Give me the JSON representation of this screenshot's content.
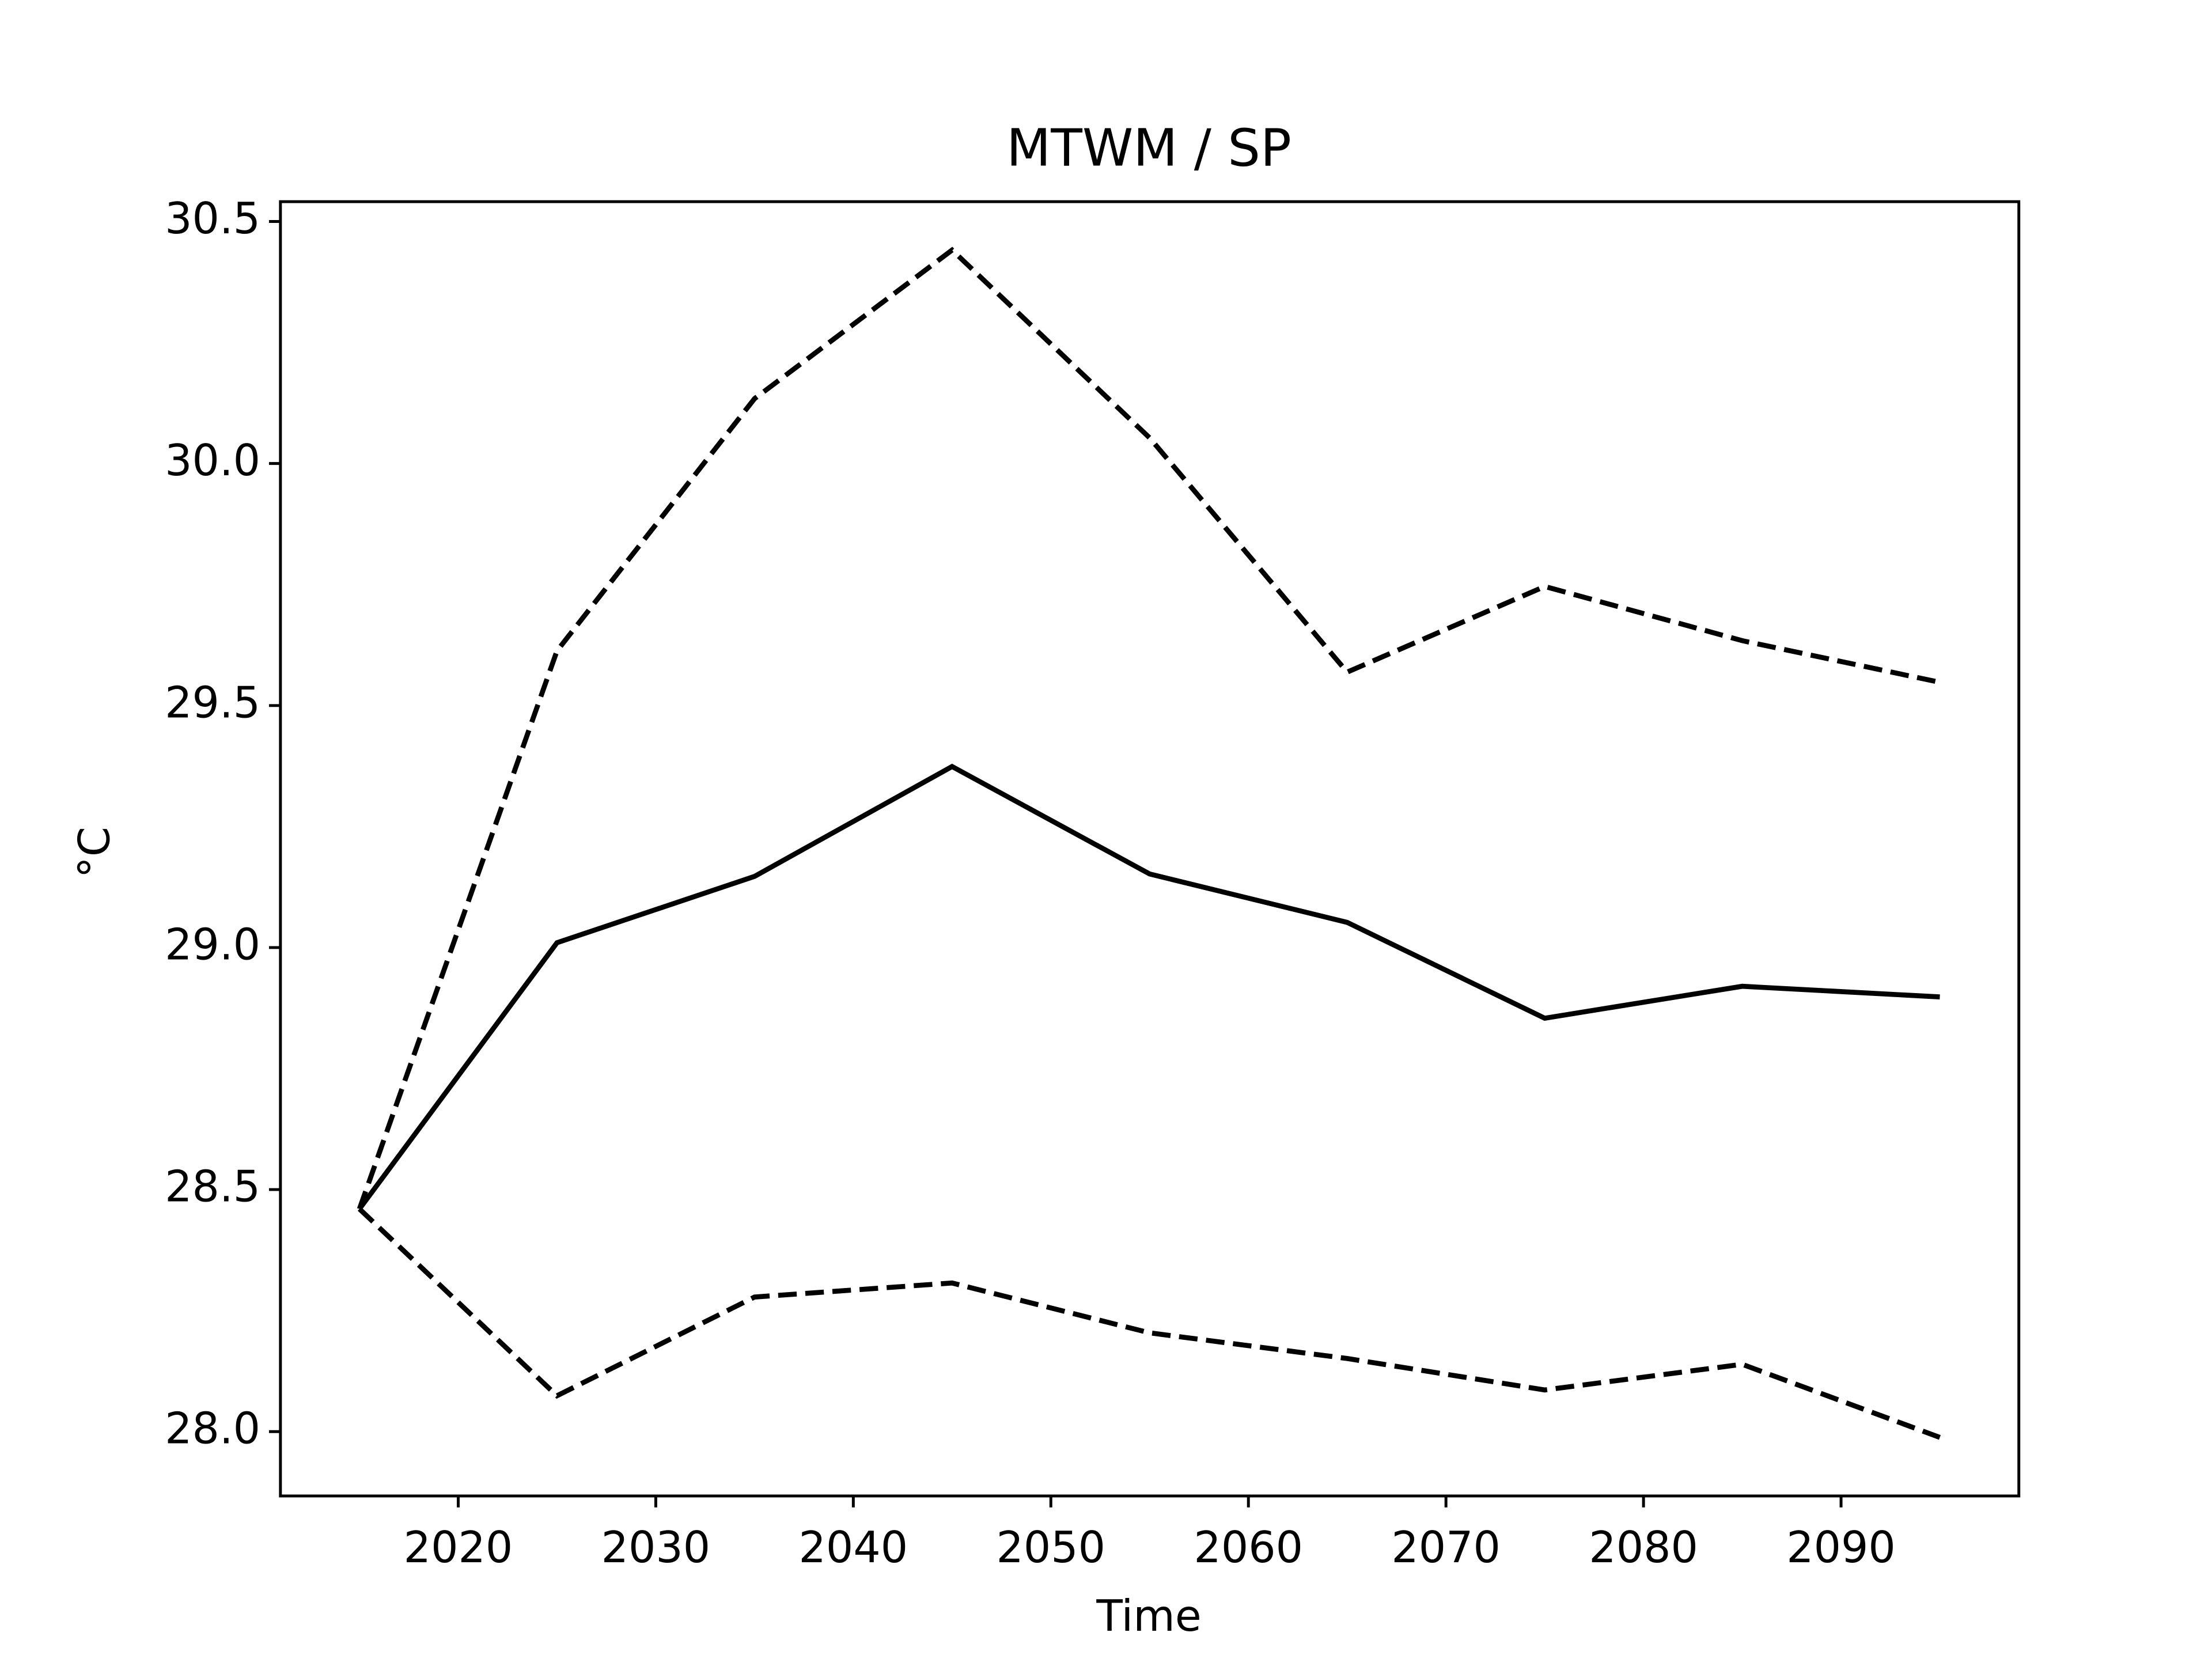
{
  "chart_data": {
    "type": "line",
    "title": "MTWM / SP",
    "xlabel": "Time",
    "ylabel": "°C",
    "x": [
      2015,
      2025,
      2035,
      2045,
      2055,
      2065,
      2075,
      2085,
      2095
    ],
    "series": [
      {
        "color": "#000000",
        "linestyle": "solid",
        "values": [
          28.46,
          29.01,
          29.147,
          29.374,
          29.152,
          29.052,
          28.854,
          28.92,
          28.898
        ]
      },
      {
        "color": "#000000",
        "linestyle": "dashed",
        "values": [
          28.46,
          29.613,
          30.134,
          30.441,
          30.053,
          29.569,
          29.746,
          29.634,
          29.548
        ]
      },
      {
        "color": "#000000",
        "linestyle": "dashed",
        "values": [
          28.46,
          28.074,
          28.278,
          28.307,
          28.204,
          28.151,
          28.086,
          28.139,
          27.988
        ]
      }
    ],
    "xlim": [
      2011,
      2099
    ],
    "xticks": [
      2020,
      2030,
      2040,
      2050,
      2060,
      2070,
      2080,
      2090
    ],
    "ylim": [
      27.867,
      30.541
    ],
    "yticks": [
      {
        "value": 28,
        "label": "28.0"
      },
      28.5,
      {
        "value": 29,
        "label": "29.0"
      },
      29.5,
      {
        "value": 30,
        "label": "30.0"
      },
      30.5
    ],
    "grid": false
  }
}
